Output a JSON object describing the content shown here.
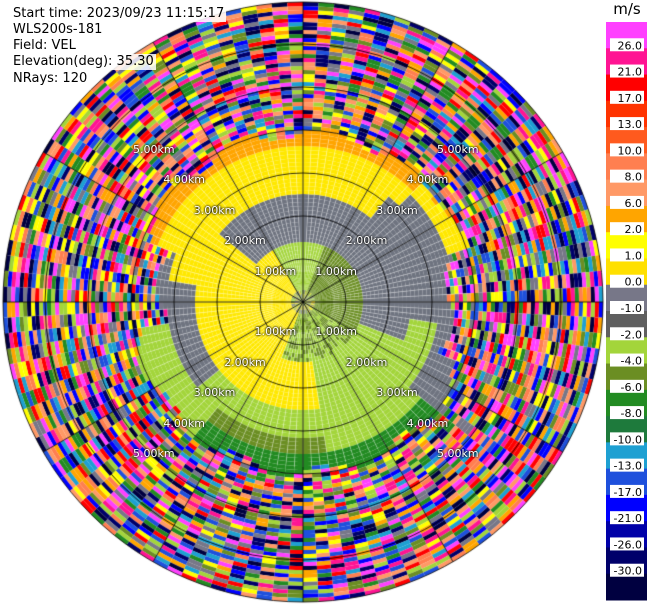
{
  "header": {
    "start_time": "Start time: 2023/09/23 11:15:17",
    "instrument": "WLS200s-181",
    "field": "Field: VEL",
    "elevation": "Elevation(deg): 35.30",
    "nrays": "NRays: 120"
  },
  "chart_data": {
    "type": "heatmap",
    "projection": "polar PPI",
    "range_ring_labels": [
      "1.00km",
      "2.00km",
      "3.00km",
      "4.00km",
      "5.00km"
    ],
    "colorbar": {
      "unit": "m/s",
      "ticks": [
        "26.0",
        "21.0",
        "17.0",
        "13.0",
        "10.0",
        "8.0",
        "6.0",
        "2.0",
        "1.0",
        "0.0",
        "-1.0",
        "-2.0",
        "-4.0",
        "-6.0",
        "-8.0",
        "-10.0",
        "-13.0",
        "-17.0",
        "-21.0",
        "-26.0",
        "-30.0"
      ],
      "colors": [
        "#ff40ff",
        "#ff1493",
        "#ff0000",
        "#ff3300",
        "#ff5a1e",
        "#ff7f50",
        "#ff9966",
        "#ffa500",
        "#ffff00",
        "#ffe000",
        "#777788",
        "#5f5f5f",
        "#a3d53b",
        "#6b8e23",
        "#228b22",
        "#1e7a3c",
        "#1ea0d2",
        "#1e50dc",
        "#0000ff",
        "#0000a8",
        "#00006a",
        "#000040"
      ]
    }
  }
}
